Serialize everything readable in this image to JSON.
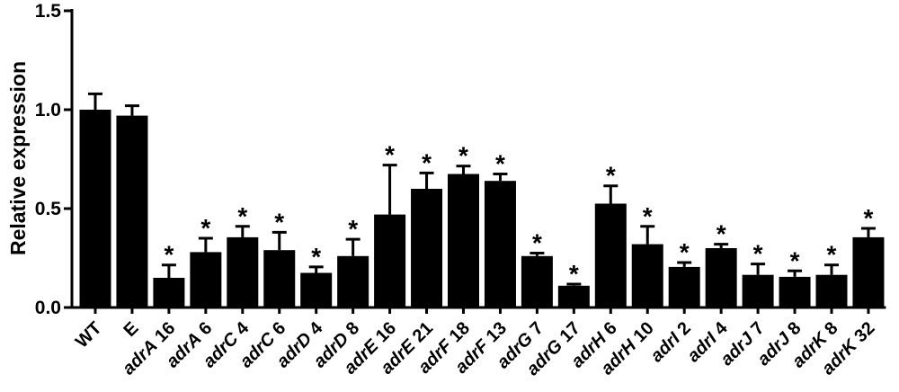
{
  "chart_data": {
    "type": "bar",
    "ylabel": "Relative expression",
    "ylim": [
      0,
      1.5
    ],
    "yticks": [
      "0.0",
      "0.5",
      "1.0",
      "1.5"
    ],
    "significance_marker": "*",
    "categories": [
      {
        "gene": "WT",
        "number": ""
      },
      {
        "gene": "E",
        "number": ""
      },
      {
        "gene": "adrA",
        "number": " 16"
      },
      {
        "gene": "adrA",
        "number": " 6"
      },
      {
        "gene": "adrC",
        "number": " 4"
      },
      {
        "gene": "adrC",
        "number": " 6"
      },
      {
        "gene": "adrD",
        "number": " 4"
      },
      {
        "gene": "adrD",
        "number": " 8"
      },
      {
        "gene": "adrE",
        "number": " 16"
      },
      {
        "gene": "adrE",
        "number": " 21"
      },
      {
        "gene": "adrF",
        "number": " 18"
      },
      {
        "gene": "adrF",
        "number": " 13"
      },
      {
        "gene": "adrG",
        "number": " 7"
      },
      {
        "gene": "adrG",
        "number": " 17"
      },
      {
        "gene": "adrH",
        "number": " 6"
      },
      {
        "gene": "adrH",
        "number": " 10"
      },
      {
        "gene": "adrI",
        "number": " 2"
      },
      {
        "gene": "adrI",
        "number": " 4"
      },
      {
        "gene": "adrJ",
        "number": " 7"
      },
      {
        "gene": "adrJ",
        "number": " 8"
      },
      {
        "gene": "adrK",
        "number": " 8"
      },
      {
        "gene": "adrK",
        "number": " 32"
      }
    ],
    "values": [
      1.0,
      0.97,
      0.15,
      0.28,
      0.355,
      0.29,
      0.175,
      0.26,
      0.47,
      0.6,
      0.675,
      0.64,
      0.26,
      0.11,
      0.525,
      0.32,
      0.205,
      0.3,
      0.165,
      0.155,
      0.165,
      0.355
    ],
    "errors": [
      0.08,
      0.05,
      0.065,
      0.07,
      0.055,
      0.09,
      0.03,
      0.085,
      0.25,
      0.08,
      0.04,
      0.035,
      0.015,
      0.008,
      0.09,
      0.09,
      0.022,
      0.02,
      0.055,
      0.03,
      0.05,
      0.045
    ],
    "significant": [
      false,
      false,
      true,
      true,
      true,
      true,
      true,
      true,
      true,
      true,
      true,
      true,
      true,
      true,
      true,
      true,
      true,
      true,
      true,
      true,
      true,
      true
    ]
  }
}
